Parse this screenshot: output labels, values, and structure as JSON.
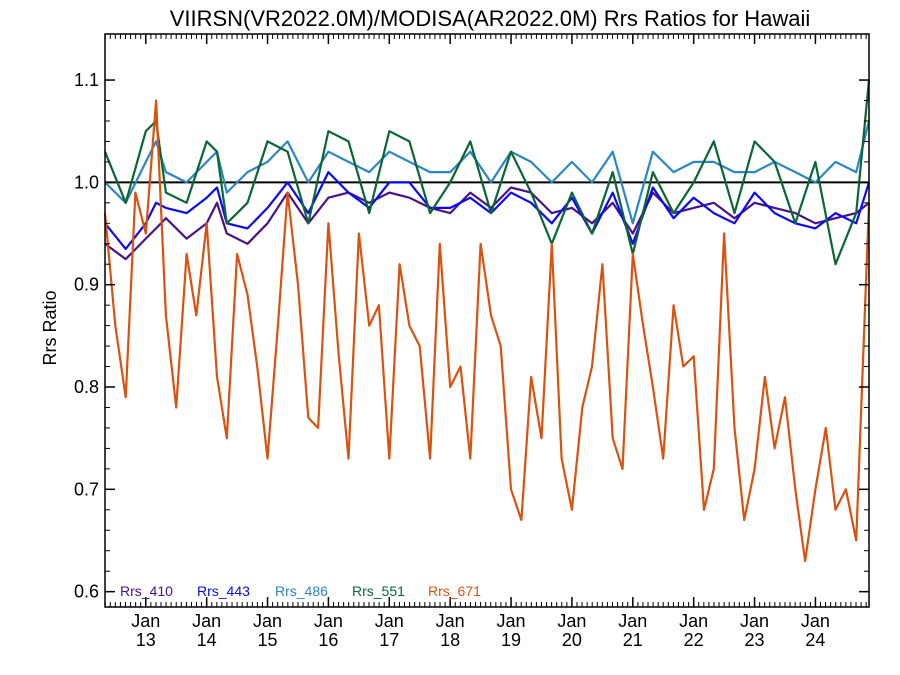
{
  "chart_data": {
    "type": "line",
    "title": "VIIRSN(VR2022.0M)/MODISA(AR2022.0M)  Rrs Ratios for Hawaii",
    "ylabel": "Rrs Ratio",
    "xlabel": "",
    "xlim": [
      2012.33,
      2024.88
    ],
    "ylim": [
      0.585,
      1.145
    ],
    "yticks": [
      0.6,
      0.7,
      0.8,
      0.9,
      1.0,
      1.1
    ],
    "ytick_labels": [
      "0.6",
      "0.7",
      "0.8",
      "0.9",
      "1.0",
      "1.1"
    ],
    "xticks": [
      {
        "x": 2013.0,
        "line1": "Jan",
        "line2": "13"
      },
      {
        "x": 2014.0,
        "line1": "Jan",
        "line2": "14"
      },
      {
        "x": 2015.0,
        "line1": "Jan",
        "line2": "15"
      },
      {
        "x": 2016.0,
        "line1": "Jan",
        "line2": "16"
      },
      {
        "x": 2017.0,
        "line1": "Jan",
        "line2": "17"
      },
      {
        "x": 2018.0,
        "line1": "Jan",
        "line2": "18"
      },
      {
        "x": 2019.0,
        "line1": "Jan",
        "line2": "19"
      },
      {
        "x": 2020.0,
        "line1": "Jan",
        "line2": "20"
      },
      {
        "x": 2021.0,
        "line1": "Jan",
        "line2": "21"
      },
      {
        "x": 2022.0,
        "line1": "Jan",
        "line2": "22"
      },
      {
        "x": 2023.0,
        "line1": "Jan",
        "line2": "23"
      },
      {
        "x": 2024.0,
        "line1": "Jan",
        "line2": "24"
      }
    ],
    "reference_line": 1.0,
    "legend_position": "bottom-left",
    "series": [
      {
        "name": "Rrs_410",
        "color": "#4b1186",
        "x": [
          2012.33,
          2012.67,
          2013.0,
          2013.17,
          2013.33,
          2013.67,
          2014.0,
          2014.17,
          2014.33,
          2014.67,
          2015.0,
          2015.33,
          2015.67,
          2016.0,
          2016.33,
          2016.67,
          2017.0,
          2017.33,
          2017.67,
          2018.0,
          2018.33,
          2018.67,
          2019.0,
          2019.33,
          2019.67,
          2020.0,
          2020.33,
          2020.67,
          2021.0,
          2021.33,
          2021.67,
          2022.0,
          2022.33,
          2022.67,
          2023.0,
          2023.33,
          2023.67,
          2024.0,
          2024.33,
          2024.67,
          2024.88
        ],
        "y": [
          0.94,
          0.925,
          0.945,
          0.955,
          0.965,
          0.945,
          0.96,
          0.98,
          0.95,
          0.94,
          0.96,
          0.99,
          0.96,
          0.985,
          0.99,
          0.98,
          0.99,
          0.985,
          0.975,
          0.97,
          0.99,
          0.975,
          0.995,
          0.99,
          0.97,
          0.975,
          0.96,
          0.98,
          0.95,
          0.99,
          0.97,
          0.975,
          0.98,
          0.965,
          0.98,
          0.975,
          0.97,
          0.96,
          0.965,
          0.97,
          0.98
        ]
      },
      {
        "name": "Rrs_443",
        "color": "#0a0af0",
        "x": [
          2012.33,
          2012.67,
          2013.0,
          2013.17,
          2013.33,
          2013.67,
          2014.0,
          2014.17,
          2014.33,
          2014.67,
          2015.0,
          2015.33,
          2015.67,
          2016.0,
          2016.33,
          2016.67,
          2017.0,
          2017.33,
          2017.67,
          2018.0,
          2018.33,
          2018.67,
          2019.0,
          2019.33,
          2019.67,
          2020.0,
          2020.33,
          2020.67,
          2021.0,
          2021.33,
          2021.67,
          2022.0,
          2022.33,
          2022.67,
          2023.0,
          2023.33,
          2023.67,
          2024.0,
          2024.33,
          2024.67,
          2024.88
        ],
        "y": [
          0.96,
          0.935,
          0.96,
          0.98,
          0.975,
          0.97,
          0.985,
          0.995,
          0.96,
          0.955,
          0.975,
          1.0,
          0.97,
          1.01,
          0.99,
          0.975,
          1.0,
          1.0,
          0.975,
          0.975,
          0.985,
          0.97,
          0.99,
          0.98,
          0.96,
          0.985,
          0.95,
          0.99,
          0.94,
          0.995,
          0.965,
          0.985,
          0.97,
          0.96,
          0.99,
          0.97,
          0.96,
          0.955,
          0.97,
          0.96,
          1.0
        ]
      },
      {
        "name": "Rrs_486",
        "color": "#2b86c4",
        "x": [
          2012.33,
          2012.67,
          2013.0,
          2013.17,
          2013.33,
          2013.67,
          2014.0,
          2014.17,
          2014.33,
          2014.67,
          2015.0,
          2015.33,
          2015.67,
          2016.0,
          2016.33,
          2016.67,
          2017.0,
          2017.33,
          2017.67,
          2018.0,
          2018.33,
          2018.67,
          2019.0,
          2019.33,
          2019.67,
          2020.0,
          2020.33,
          2020.67,
          2021.0,
          2021.33,
          2021.67,
          2022.0,
          2022.33,
          2022.67,
          2023.0,
          2023.33,
          2023.67,
          2024.0,
          2024.33,
          2024.67,
          2024.88
        ],
        "y": [
          1.0,
          0.98,
          1.02,
          1.04,
          1.01,
          1.0,
          1.02,
          1.03,
          0.99,
          1.01,
          1.02,
          1.04,
          1.0,
          1.03,
          1.02,
          1.01,
          1.03,
          1.02,
          1.01,
          1.01,
          1.03,
          1.0,
          1.03,
          1.02,
          1.0,
          1.02,
          1.0,
          1.03,
          0.96,
          1.03,
          1.01,
          1.02,
          1.02,
          1.01,
          1.01,
          1.02,
          1.01,
          1.0,
          1.02,
          1.01,
          1.06
        ]
      },
      {
        "name": "Rrs_551",
        "color": "#0a6633",
        "x": [
          2012.33,
          2012.67,
          2013.0,
          2013.17,
          2013.33,
          2013.67,
          2014.0,
          2014.17,
          2014.33,
          2014.67,
          2015.0,
          2015.33,
          2015.67,
          2016.0,
          2016.33,
          2016.67,
          2017.0,
          2017.33,
          2017.67,
          2018.0,
          2018.33,
          2018.67,
          2019.0,
          2019.33,
          2019.67,
          2020.0,
          2020.33,
          2020.67,
          2021.0,
          2021.33,
          2021.67,
          2022.0,
          2022.33,
          2022.67,
          2023.0,
          2023.33,
          2023.67,
          2024.0,
          2024.33,
          2024.67,
          2024.88
        ],
        "y": [
          1.03,
          0.98,
          1.05,
          1.06,
          0.99,
          0.98,
          1.04,
          1.03,
          0.96,
          0.98,
          1.04,
          1.03,
          0.96,
          1.05,
          1.04,
          0.97,
          1.05,
          1.04,
          0.97,
          1.0,
          1.04,
          0.97,
          1.03,
          0.99,
          0.94,
          0.99,
          0.95,
          1.01,
          0.93,
          1.01,
          0.97,
          1.0,
          1.04,
          0.97,
          1.04,
          1.02,
          0.96,
          1.02,
          0.92,
          0.97,
          1.1
        ]
      },
      {
        "name": "Rrs_671",
        "color": "#d9520f",
        "x": [
          2012.33,
          2012.5,
          2012.67,
          2012.83,
          2013.0,
          2013.17,
          2013.33,
          2013.5,
          2013.67,
          2013.83,
          2014.0,
          2014.17,
          2014.33,
          2014.5,
          2014.67,
          2014.83,
          2015.0,
          2015.17,
          2015.33,
          2015.5,
          2015.67,
          2015.83,
          2016.0,
          2016.17,
          2016.33,
          2016.5,
          2016.67,
          2016.83,
          2017.0,
          2017.17,
          2017.33,
          2017.5,
          2017.67,
          2017.83,
          2018.0,
          2018.17,
          2018.33,
          2018.5,
          2018.67,
          2018.83,
          2019.0,
          2019.17,
          2019.33,
          2019.5,
          2019.67,
          2019.83,
          2020.0,
          2020.17,
          2020.33,
          2020.5,
          2020.67,
          2020.83,
          2021.0,
          2021.17,
          2021.33,
          2021.5,
          2021.67,
          2021.83,
          2022.0,
          2022.17,
          2022.33,
          2022.5,
          2022.67,
          2022.83,
          2023.0,
          2023.17,
          2023.33,
          2023.5,
          2023.67,
          2023.83,
          2024.0,
          2024.17,
          2024.33,
          2024.5,
          2024.67,
          2024.88
        ],
        "y": [
          0.97,
          0.86,
          0.79,
          0.99,
          0.95,
          1.08,
          0.87,
          0.78,
          0.93,
          0.87,
          0.96,
          0.81,
          0.75,
          0.93,
          0.89,
          0.82,
          0.73,
          0.86,
          0.99,
          0.9,
          0.77,
          0.76,
          0.96,
          0.83,
          0.73,
          0.95,
          0.86,
          0.88,
          0.73,
          0.92,
          0.86,
          0.84,
          0.73,
          0.94,
          0.8,
          0.82,
          0.73,
          0.94,
          0.87,
          0.84,
          0.7,
          0.67,
          0.81,
          0.75,
          0.94,
          0.73,
          0.68,
          0.78,
          0.82,
          0.92,
          0.75,
          0.72,
          0.93,
          0.86,
          0.8,
          0.73,
          0.88,
          0.82,
          0.83,
          0.68,
          0.72,
          0.95,
          0.76,
          0.67,
          0.72,
          0.81,
          0.74,
          0.79,
          0.7,
          0.63,
          0.7,
          0.76,
          0.68,
          0.7,
          0.65,
          0.98
        ]
      }
    ]
  }
}
